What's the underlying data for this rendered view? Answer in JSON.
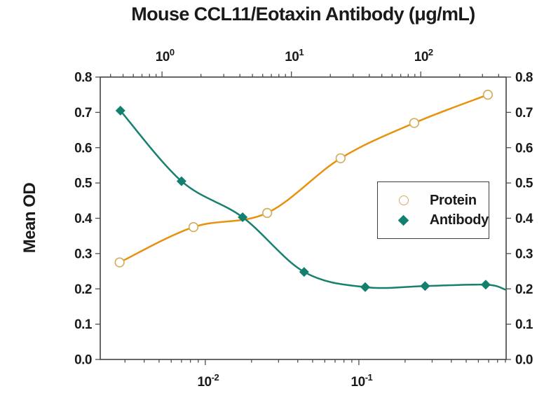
{
  "title": "Mouse CCL11/Eotaxin Antibody (μg/mL)",
  "chart_data": {
    "type": "scatter",
    "title": "Mouse CCL11/Eotaxin Antibody (μg/mL)",
    "y_axis": {
      "label": "Mean OD",
      "min": 0.0,
      "max": 0.8,
      "tick_step": 0.1,
      "tick_decimals": 1,
      "sides": "left-and-right"
    },
    "top_axis": {
      "scale": "log",
      "min": 0.333,
      "max": 457,
      "major_ticks": [
        {
          "value": 1,
          "label_base": "10",
          "label_exp": "0"
        },
        {
          "value": 10,
          "label_base": "10",
          "label_exp": "1"
        },
        {
          "value": 100,
          "label_base": "10",
          "label_exp": "2"
        }
      ]
    },
    "bottom_axis": {
      "scale": "log",
      "min": 0.00207,
      "max": 0.91,
      "major_ticks": [
        {
          "value": 0.01,
          "label_base": "10",
          "label_exp": "-2"
        },
        {
          "value": 0.1,
          "label_base": "10",
          "label_exp": "-1"
        }
      ]
    },
    "grid": false,
    "legend_position": "middle-right",
    "series": [
      {
        "name": "Protein",
        "axis": "top",
        "marker": "open-circle",
        "marker_color": "#d5ad5f",
        "line_color": "#e8910d",
        "x": [
          0.47,
          1.75,
          6.5,
          24,
          89,
          330
        ],
        "y": [
          0.275,
          0.375,
          0.415,
          0.57,
          0.67,
          0.75
        ]
      },
      {
        "name": "Antibody",
        "axis": "bottom",
        "marker": "filled-diamond",
        "marker_color": "#13806f",
        "line_color": "#17806f",
        "x": [
          0.0028,
          0.007,
          0.0175,
          0.044,
          0.11,
          0.27,
          0.67
        ],
        "y": [
          0.705,
          0.505,
          0.403,
          0.248,
          0.205,
          0.208,
          0.212
        ],
        "curve_end": {
          "x": 0.9,
          "y": 0.198
        }
      }
    ],
    "colors": {
      "text": "#1a1a1a",
      "axis": "#4d4d4d",
      "background": "#ffffff"
    }
  }
}
